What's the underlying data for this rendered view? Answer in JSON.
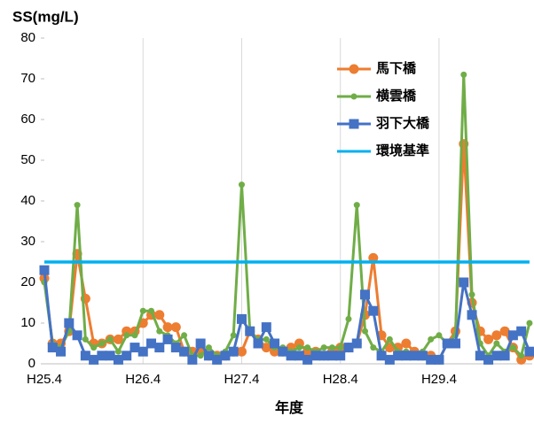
{
  "chart_data": {
    "type": "line",
    "y_label": "SS(mg/L)",
    "x_label": "年度",
    "categories": [
      "H25.4",
      null,
      null,
      null,
      null,
      null,
      null,
      null,
      null,
      null,
      null,
      null,
      "H26.4",
      null,
      null,
      null,
      null,
      null,
      null,
      null,
      null,
      null,
      null,
      null,
      "H27.4",
      null,
      null,
      null,
      null,
      null,
      null,
      null,
      null,
      null,
      null,
      null,
      "H28.4",
      null,
      null,
      null,
      null,
      null,
      null,
      null,
      null,
      null,
      null,
      null,
      "H29.4",
      null,
      null,
      null,
      null,
      null,
      null,
      null,
      null,
      null,
      null,
      null
    ],
    "series": [
      {
        "name": "馬下橋",
        "color": "#ed7d31",
        "marker": "circle",
        "values": [
          21,
          5,
          5,
          8,
          27,
          16,
          5,
          5,
          6,
          6,
          8,
          8,
          10,
          12,
          12,
          9,
          9,
          3,
          3,
          3,
          2,
          2,
          2,
          3,
          3,
          8,
          6,
          4,
          3,
          3,
          4,
          5,
          3,
          3,
          2,
          3,
          4,
          4,
          5,
          12,
          26,
          7,
          4,
          4,
          5,
          3,
          2,
          2,
          1,
          5,
          8,
          54,
          15,
          8,
          6,
          7,
          8,
          4,
          1,
          2
        ]
      },
      {
        "name": "横雲橋",
        "color": "#70ad47",
        "marker": "dot",
        "values": [
          20,
          5,
          4,
          8,
          39,
          6,
          4,
          5,
          6,
          3,
          7,
          7,
          13,
          13,
          8,
          7,
          5,
          7,
          2,
          2,
          4,
          2,
          3,
          7,
          44,
          8,
          6,
          6,
          4,
          4,
          3,
          4,
          4,
          3,
          4,
          4,
          4,
          11,
          39,
          8,
          4,
          3,
          6,
          3,
          3,
          2,
          3,
          6,
          7,
          5,
          7,
          71,
          17,
          5,
          2,
          5,
          3,
          4,
          2,
          10
        ]
      },
      {
        "name": "羽下大橋",
        "color": "#4472c4",
        "marker": "square",
        "values": [
          23,
          4,
          3,
          10,
          7,
          2,
          1,
          2,
          2,
          1,
          2,
          4,
          3,
          5,
          4,
          6,
          4,
          3,
          1,
          5,
          2,
          1,
          2,
          3,
          11,
          8,
          5,
          9,
          5,
          3,
          2,
          2,
          1,
          2,
          2,
          2,
          2,
          4,
          5,
          17,
          13,
          2,
          1,
          2,
          2,
          2,
          2,
          1,
          1,
          5,
          5,
          20,
          12,
          2,
          1,
          2,
          2,
          7,
          8,
          3
        ]
      },
      {
        "name": "環境基準",
        "color": "#00b0f0",
        "values": [
          25,
          25,
          25,
          25,
          25,
          25,
          25,
          25,
          25,
          25,
          25,
          25,
          25,
          25,
          25,
          25,
          25,
          25,
          25,
          25,
          25,
          25,
          25,
          25,
          25,
          25,
          25,
          25,
          25,
          25,
          25,
          25,
          25,
          25,
          25,
          25,
          25,
          25,
          25,
          25,
          25,
          25,
          25,
          25,
          25,
          25,
          25,
          25,
          25,
          25,
          25,
          25,
          25,
          25,
          25,
          25,
          25,
          25,
          25,
          25
        ]
      }
    ],
    "ylim": [
      0,
      80
    ],
    "yticks": [
      0,
      10,
      20,
      30,
      40,
      50,
      60,
      70,
      80
    ],
    "grid": true,
    "legend": "top-right"
  }
}
